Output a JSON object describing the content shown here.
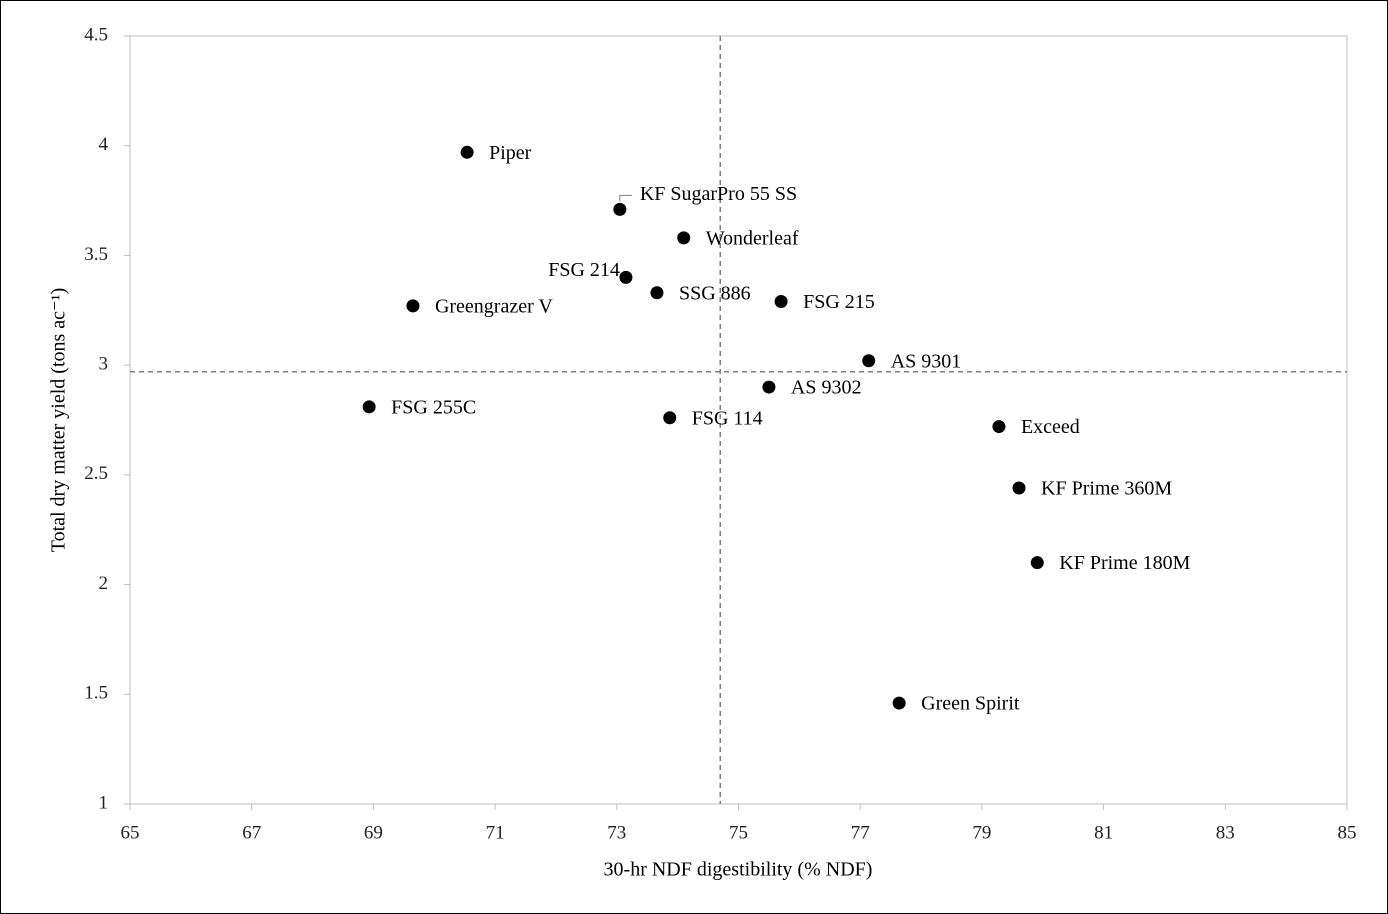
{
  "chart_data": {
    "type": "scatter",
    "x_label": "30-hr NDF digestibility (% NDF)",
    "y_label": "Total dry matter yield (tons ac⁻¹)",
    "xlim": [
      65,
      85
    ],
    "xticks": [
      65,
      67,
      69,
      71,
      73,
      75,
      77,
      79,
      81,
      83,
      85
    ],
    "ylim": [
      1,
      4.5
    ],
    "yticks": [
      1,
      1.5,
      2,
      2.5,
      3,
      3.5,
      4,
      4.5
    ],
    "color": "#000000",
    "reference_lines": {
      "x": 74.7,
      "y": 2.97
    },
    "labels": [
      "Piper",
      "KF SugarPro 55 SS",
      "Wonderleaf",
      "FSG 214",
      "SSG 886",
      "FSG 215",
      "Greengrazer V",
      "AS 9301",
      "AS 9302",
      "FSG 255C",
      "FSG 114",
      "Exceed",
      "KF Prime 360M",
      "KF Prime 180M",
      "Green Spirit"
    ],
    "x": [
      70.54,
      73.05,
      74.1,
      73.15,
      73.66,
      75.7,
      69.65,
      77.14,
      75.5,
      68.93,
      73.87,
      79.28,
      79.61,
      79.91,
      77.64
    ],
    "values": [
      3.97,
      3.71,
      3.58,
      3.4,
      3.33,
      3.29,
      3.27,
      3.02,
      2.9,
      2.81,
      2.76,
      2.72,
      2.44,
      2.1,
      1.46
    ]
  }
}
